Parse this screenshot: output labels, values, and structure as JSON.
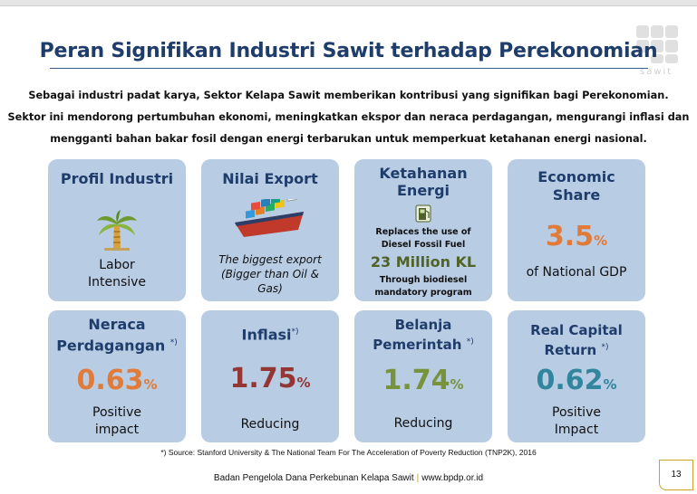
{
  "title": "Peran Signifikan Industri Sawit terhadap Perekonomian",
  "logo_text": "sawit",
  "intro": [
    "Sebagai industri padat karya, Sektor Kelapa Sawit memberikan kontribusi yang signifikan bagi Perekonomian.",
    "Sektor ini mendorong pertumbuhan ekonomi, meningkatkan ekspor dan neraca perdagangan, mengurangi inflasi dan",
    "mengganti bahan bakar fosil dengan energi terbarukan untuk memperkuat ketahanan energi nasional."
  ],
  "cards_top": {
    "profil": {
      "title": "Profil Industri",
      "text_line1": "Labor",
      "text_line2": "Intensive",
      "icon": "palm-tree-icon"
    },
    "export": {
      "title": "Nilai Export",
      "text_line1": "The biggest export",
      "text_line2": "(Bigger than Oil &",
      "text_line3": "Gas)",
      "icon": "cargo-ship-icon"
    },
    "energi": {
      "title_line1": "Ketahanan",
      "title_line2": "Energi",
      "line1": "Replaces the use of",
      "line2": "Diesel Fossil Fuel",
      "big": "23 Million KL",
      "line3": "Through biodiesel",
      "line4": "mandatory program",
      "icon": "fuel-pump-icon"
    },
    "economic": {
      "title_line1": "Economic",
      "title_line2": "Share",
      "value": "3.5",
      "unit": "%",
      "text": "of National GDP"
    }
  },
  "cards_bottom": {
    "neraca": {
      "title_line1": "Neraca",
      "title_line2": "Perdagangan",
      "sup": "*)",
      "value": "0.63",
      "unit": "%",
      "text_line1": "Positive",
      "text_line2": "impact",
      "color": "#e07b39"
    },
    "inflasi": {
      "title": "Inflasi",
      "sup": "*)",
      "value": "1.75",
      "unit": "%",
      "text": "Reducing",
      "color": "#943634"
    },
    "belanja": {
      "title_line1": "Belanja",
      "title_line2": "Pemerintah",
      "sup": "*)",
      "value": "1.74",
      "unit": "%",
      "text": "Reducing",
      "color": "#77933c"
    },
    "return": {
      "title_line1": "Real Capital",
      "title_line2": "Return",
      "sup": "*)",
      "value": "0.62",
      "unit": "%",
      "text_line1": "Positive",
      "text_line2": "Impact",
      "color": "#31859c"
    }
  },
  "colors": {
    "title": "#1f3d6b",
    "card_bg": "#b8cce4",
    "accent_gold": "#c9a227"
  },
  "source": "*) Source: Stanford  University & The National Team For The Acceleration of Poverty Reduction (TNP2K), 2016",
  "footer": {
    "org": "Badan Pengelola Dana Perkebunan Kelapa Sawit",
    "url": "www.bpdp.or.id",
    "separator": "|"
  },
  "page_number": "13"
}
